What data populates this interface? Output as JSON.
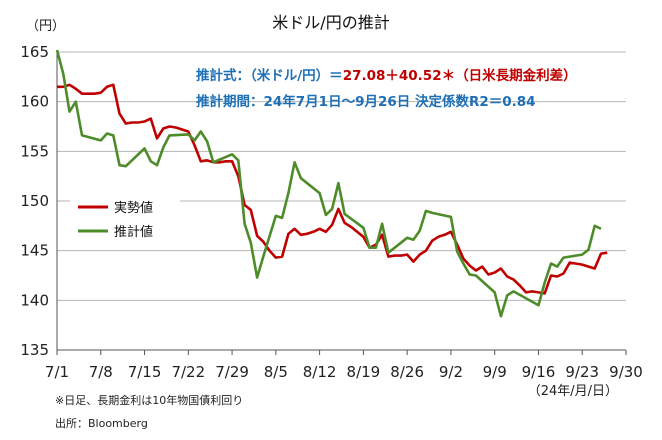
{
  "chart_data": {
    "type": "line",
    "title": "米ドル/円の推計",
    "ylabel": "（円）",
    "xunit": "（24年/月/日）",
    "ylim": [
      135,
      165
    ],
    "yticks": [
      135,
      140,
      145,
      150,
      155,
      160,
      165
    ],
    "xlim": [
      0,
      91
    ],
    "xticks": [
      {
        "label": "7/1",
        "day": 0
      },
      {
        "label": "7/8",
        "day": 7
      },
      {
        "label": "7/15",
        "day": 14
      },
      {
        "label": "7/22",
        "day": 21
      },
      {
        "label": "7/29",
        "day": 28
      },
      {
        "label": "8/5",
        "day": 35
      },
      {
        "label": "8/12",
        "day": 42
      },
      {
        "label": "8/19",
        "day": 49
      },
      {
        "label": "8/26",
        "day": 56
      },
      {
        "label": "9/2",
        "day": 63
      },
      {
        "label": "9/9",
        "day": 70
      },
      {
        "label": "9/16",
        "day": 77
      },
      {
        "label": "9/23",
        "day": 84
      },
      {
        "label": "9/30",
        "day": 91
      }
    ],
    "grid": true,
    "legend_position": "left",
    "annotations": {
      "formula_prefix": "推計式：（米ドル/円）＝",
      "formula_coef": "27.08＋40.52＊（日米長期金利差）",
      "period": "推計期間：24年7月1日～9月26日  決定係数R2＝0.84"
    },
    "notes": [
      "※日足、長期金利は10年物国債利回り",
      "出所：Bloomberg"
    ],
    "series": [
      {
        "name": "実勢値",
        "color": "#c00000",
        "points": [
          [
            0,
            161.5
          ],
          [
            1,
            161.5
          ],
          [
            2,
            161.7
          ],
          [
            3,
            161.3
          ],
          [
            4,
            160.8
          ],
          [
            5,
            160.8
          ],
          [
            6,
            160.8
          ],
          [
            7,
            160.9
          ],
          [
            8,
            161.5
          ],
          [
            9,
            161.7
          ],
          [
            10,
            158.8
          ],
          [
            11,
            157.8
          ],
          [
            12,
            157.9
          ],
          [
            13,
            157.9
          ],
          [
            14,
            158.0
          ],
          [
            15,
            158.3
          ],
          [
            16,
            156.3
          ],
          [
            17,
            157.3
          ],
          [
            18,
            157.5
          ],
          [
            19,
            157.4
          ],
          [
            20,
            157.2
          ],
          [
            21,
            157.0
          ],
          [
            22,
            155.6
          ],
          [
            23,
            154.0
          ],
          [
            24,
            154.1
          ],
          [
            25,
            153.9
          ],
          [
            26,
            153.9
          ],
          [
            27,
            154.0
          ],
          [
            28,
            154.0
          ],
          [
            29,
            152.5
          ],
          [
            30,
            149.6
          ],
          [
            31,
            149.1
          ],
          [
            32,
            146.5
          ],
          [
            33,
            145.9
          ],
          [
            34,
            145.0
          ],
          [
            35,
            144.3
          ],
          [
            36,
            144.4
          ],
          [
            37,
            146.7
          ],
          [
            38,
            147.2
          ],
          [
            39,
            146.6
          ],
          [
            40,
            146.7
          ],
          [
            41,
            146.9
          ],
          [
            42,
            147.2
          ],
          [
            43,
            146.9
          ],
          [
            44,
            147.6
          ],
          [
            45,
            149.2
          ],
          [
            46,
            147.8
          ],
          [
            47,
            147.4
          ],
          [
            48,
            146.9
          ],
          [
            49,
            146.4
          ],
          [
            50,
            145.3
          ],
          [
            51,
            145.6
          ],
          [
            52,
            146.6
          ],
          [
            53,
            144.4
          ],
          [
            54,
            144.5
          ],
          [
            55,
            144.5
          ],
          [
            56,
            144.6
          ],
          [
            57,
            143.9
          ],
          [
            58,
            144.6
          ],
          [
            59,
            145.0
          ],
          [
            60,
            146.0
          ],
          [
            61,
            146.4
          ],
          [
            62,
            146.6
          ],
          [
            63,
            146.9
          ],
          [
            64,
            145.6
          ],
          [
            65,
            144.2
          ],
          [
            66,
            143.5
          ],
          [
            67,
            143.0
          ],
          [
            68,
            143.4
          ],
          [
            69,
            142.6
          ],
          [
            70,
            142.8
          ],
          [
            71,
            143.2
          ],
          [
            72,
            142.4
          ],
          [
            73,
            142.1
          ],
          [
            74,
            141.5
          ],
          [
            75,
            140.8
          ],
          [
            76,
            140.9
          ],
          [
            77,
            140.8
          ],
          [
            78,
            140.7
          ],
          [
            79,
            142.5
          ],
          [
            80,
            142.4
          ],
          [
            81,
            142.7
          ],
          [
            82,
            143.8
          ],
          [
            83,
            143.7
          ],
          [
            84,
            143.6
          ],
          [
            85,
            143.4
          ],
          [
            86,
            143.2
          ],
          [
            87,
            144.7
          ],
          [
            88,
            144.8
          ]
        ]
      },
      {
        "name": "推計値",
        "color": "#4e8c2a",
        "points": [
          [
            0,
            165.2
          ],
          [
            1,
            162.8
          ],
          [
            2,
            159.0
          ],
          [
            3,
            160.0
          ],
          [
            4,
            156.6
          ],
          [
            7,
            156.1
          ],
          [
            8,
            156.8
          ],
          [
            9,
            156.6
          ],
          [
            10,
            153.6
          ],
          [
            11,
            153.5
          ],
          [
            14,
            155.3
          ],
          [
            15,
            154.0
          ],
          [
            16,
            153.6
          ],
          [
            17,
            155.4
          ],
          [
            18,
            156.6
          ],
          [
            21,
            156.7
          ],
          [
            22,
            156.1
          ],
          [
            23,
            157.0
          ],
          [
            24,
            156.0
          ],
          [
            25,
            153.9
          ],
          [
            28,
            154.7
          ],
          [
            29,
            154.1
          ],
          [
            30,
            147.7
          ],
          [
            31,
            145.8
          ],
          [
            32,
            142.3
          ],
          [
            33,
            144.4
          ],
          [
            35,
            148.5
          ],
          [
            36,
            148.3
          ],
          [
            37,
            150.8
          ],
          [
            38,
            153.9
          ],
          [
            39,
            152.3
          ],
          [
            42,
            150.8
          ],
          [
            43,
            148.6
          ],
          [
            44,
            149.2
          ],
          [
            45,
            151.8
          ],
          [
            46,
            148.7
          ],
          [
            49,
            147.3
          ],
          [
            50,
            145.3
          ],
          [
            51,
            145.3
          ],
          [
            52,
            147.7
          ],
          [
            53,
            144.8
          ],
          [
            56,
            146.3
          ],
          [
            57,
            146.1
          ],
          [
            58,
            147.0
          ],
          [
            59,
            149.0
          ],
          [
            60,
            148.8
          ],
          [
            63,
            148.4
          ],
          [
            64,
            144.9
          ],
          [
            65,
            143.7
          ],
          [
            66,
            142.6
          ],
          [
            67,
            142.5
          ],
          [
            70,
            140.8
          ],
          [
            71,
            138.4
          ],
          [
            72,
            140.5
          ],
          [
            73,
            140.9
          ],
          [
            77,
            139.5
          ],
          [
            78,
            141.8
          ],
          [
            79,
            143.7
          ],
          [
            80,
            143.4
          ],
          [
            81,
            144.3
          ],
          [
            84,
            144.6
          ],
          [
            85,
            145.1
          ],
          [
            86,
            147.5
          ],
          [
            87,
            147.2
          ]
        ]
      }
    ]
  }
}
